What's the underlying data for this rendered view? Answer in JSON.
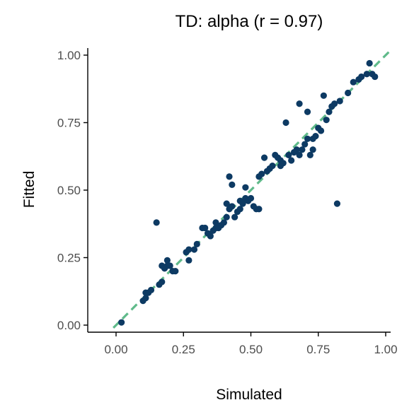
{
  "chart_data": {
    "type": "scatter",
    "title": "TD: alpha (r = 0.97)",
    "xlabel": "Simulated",
    "ylabel": "Fitted",
    "xlim": [
      0,
      1
    ],
    "ylim": [
      0,
      1
    ],
    "xticks": [
      "0.00",
      "0.25",
      "0.50",
      "0.75",
      "1.00"
    ],
    "yticks": [
      "0.00",
      "0.25",
      "0.50",
      "0.75",
      "1.00"
    ],
    "grid": false,
    "point_color": "#0d3a63",
    "identity_line": {
      "from": [
        0,
        0
      ],
      "to": [
        1,
        1
      ],
      "style": "dashed",
      "color": "#5fba8a"
    },
    "points": [
      [
        0.02,
        0.01
      ],
      [
        0.1,
        0.09
      ],
      [
        0.11,
        0.1
      ],
      [
        0.11,
        0.12
      ],
      [
        0.12,
        0.12
      ],
      [
        0.13,
        0.13
      ],
      [
        0.15,
        0.38
      ],
      [
        0.16,
        0.15
      ],
      [
        0.17,
        0.16
      ],
      [
        0.17,
        0.22
      ],
      [
        0.18,
        0.21
      ],
      [
        0.19,
        0.22
      ],
      [
        0.19,
        0.24
      ],
      [
        0.2,
        0.22
      ],
      [
        0.21,
        0.2
      ],
      [
        0.22,
        0.2
      ],
      [
        0.26,
        0.27
      ],
      [
        0.27,
        0.24
      ],
      [
        0.27,
        0.28
      ],
      [
        0.29,
        0.28
      ],
      [
        0.3,
        0.3
      ],
      [
        0.32,
        0.36
      ],
      [
        0.33,
        0.36
      ],
      [
        0.34,
        0.34
      ],
      [
        0.35,
        0.33
      ],
      [
        0.36,
        0.35
      ],
      [
        0.37,
        0.38
      ],
      [
        0.37,
        0.36
      ],
      [
        0.38,
        0.36
      ],
      [
        0.39,
        0.37
      ],
      [
        0.4,
        0.38
      ],
      [
        0.41,
        0.4
      ],
      [
        0.41,
        0.45
      ],
      [
        0.42,
        0.43
      ],
      [
        0.42,
        0.55
      ],
      [
        0.43,
        0.44
      ],
      [
        0.43,
        0.52
      ],
      [
        0.44,
        0.4
      ],
      [
        0.45,
        0.42
      ],
      [
        0.46,
        0.43
      ],
      [
        0.46,
        0.46
      ],
      [
        0.47,
        0.45
      ],
      [
        0.48,
        0.51
      ],
      [
        0.48,
        0.47
      ],
      [
        0.49,
        0.46
      ],
      [
        0.5,
        0.47
      ],
      [
        0.51,
        0.44
      ],
      [
        0.52,
        0.43
      ],
      [
        0.53,
        0.43
      ],
      [
        0.53,
        0.55
      ],
      [
        0.54,
        0.56
      ],
      [
        0.55,
        0.62
      ],
      [
        0.56,
        0.57
      ],
      [
        0.57,
        0.58
      ],
      [
        0.58,
        0.59
      ],
      [
        0.59,
        0.63
      ],
      [
        0.6,
        0.62
      ],
      [
        0.61,
        0.59
      ],
      [
        0.61,
        0.61
      ],
      [
        0.62,
        0.6
      ],
      [
        0.63,
        0.75
      ],
      [
        0.64,
        0.63
      ],
      [
        0.65,
        0.61
      ],
      [
        0.66,
        0.64
      ],
      [
        0.67,
        0.65
      ],
      [
        0.68,
        0.63
      ],
      [
        0.68,
        0.82
      ],
      [
        0.69,
        0.65
      ],
      [
        0.7,
        0.67
      ],
      [
        0.71,
        0.79
      ],
      [
        0.71,
        0.69
      ],
      [
        0.72,
        0.63
      ],
      [
        0.73,
        0.69
      ],
      [
        0.73,
        0.65
      ],
      [
        0.74,
        0.7
      ],
      [
        0.75,
        0.73
      ],
      [
        0.76,
        0.72
      ],
      [
        0.77,
        0.85
      ],
      [
        0.78,
        0.76
      ],
      [
        0.79,
        0.79
      ],
      [
        0.8,
        0.81
      ],
      [
        0.81,
        0.82
      ],
      [
        0.82,
        0.45
      ],
      [
        0.83,
        0.83
      ],
      [
        0.86,
        0.86
      ],
      [
        0.88,
        0.9
      ],
      [
        0.9,
        0.91
      ],
      [
        0.91,
        0.92
      ],
      [
        0.93,
        0.93
      ],
      [
        0.94,
        0.97
      ],
      [
        0.95,
        0.93
      ],
      [
        0.96,
        0.92
      ]
    ]
  }
}
